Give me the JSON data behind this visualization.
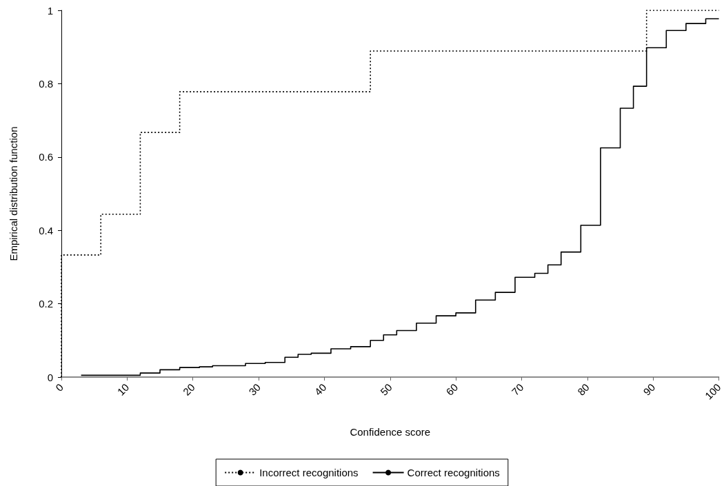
{
  "chart_data": {
    "type": "step",
    "xlabel": "Confidence score",
    "ylabel": "Empirical distribution function",
    "xlim": [
      0,
      100
    ],
    "xticks": [
      0,
      10,
      20,
      30,
      40,
      50,
      60,
      70,
      80,
      90,
      100
    ],
    "ylim": [
      0,
      1
    ],
    "yticks": [
      0,
      0.2,
      0.4,
      0.6,
      0.8,
      1
    ],
    "grid": false,
    "legend": "bottom",
    "marker": "none",
    "series": [
      {
        "name": "Incorrect recognitions",
        "color": "#000000",
        "line_style": "dotted",
        "x": [
          0,
          0,
          6,
          12,
          18,
          47,
          89,
          100
        ],
        "values": [
          0,
          0.333,
          0.444,
          0.667,
          0.778,
          0.889,
          1,
          1
        ]
      },
      {
        "name": "Correct recognitions",
        "color": "#000000",
        "line_style": "solid",
        "x": [
          3,
          12,
          15,
          18,
          21,
          23,
          28,
          31,
          34,
          36,
          38,
          41,
          44,
          47,
          49,
          51,
          54,
          57,
          60,
          63,
          66,
          69,
          72,
          74,
          76,
          79,
          82,
          85,
          87,
          89,
          92,
          95,
          98,
          100
        ],
        "values": [
          0.005,
          0.011,
          0.02,
          0.026,
          0.028,
          0.031,
          0.037,
          0.04,
          0.054,
          0.062,
          0.065,
          0.077,
          0.083,
          0.1,
          0.115,
          0.127,
          0.147,
          0.167,
          0.175,
          0.21,
          0.231,
          0.272,
          0.283,
          0.306,
          0.341,
          0.414,
          0.625,
          0.733,
          0.793,
          0.898,
          0.945,
          0.964,
          0.977,
          0.977
        ]
      }
    ]
  }
}
